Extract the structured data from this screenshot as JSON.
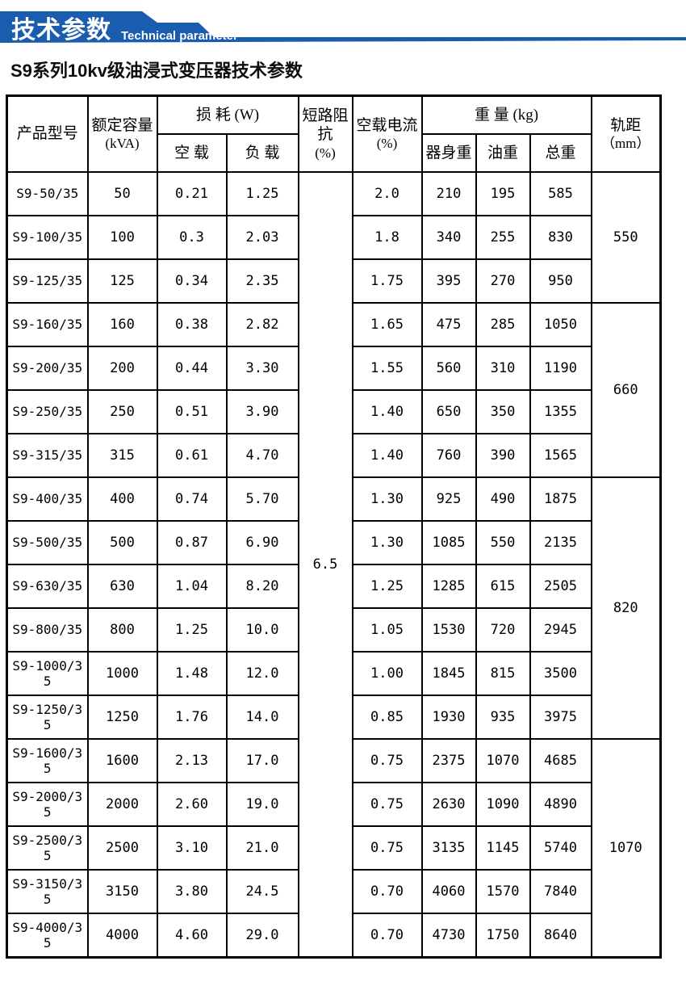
{
  "banner": {
    "title_zh": "技术参数",
    "title_en": "Technical parameter",
    "color": "#1a5cae"
  },
  "page_title": "S9系列10kv级油浸式变压器技术参数",
  "table": {
    "headers": {
      "product_model": "产品型号",
      "rated_capacity": "额定容量",
      "rated_capacity_unit": "(kVA)",
      "loss": "损 耗 (W)",
      "no_load": "空 载",
      "on_load": "负 载",
      "impedance": "短路阻抗",
      "impedance_unit": "(%)",
      "no_load_current": "空载电流",
      "no_load_current_unit": "(%)",
      "weight": "重 量 (kg)",
      "body_weight": "器身重",
      "oil_weight": "油重",
      "total_weight": "总重",
      "gauge": "轨距",
      "gauge_unit": "（mm）"
    },
    "impedance_value": "6.5",
    "gauge_groups": [
      {
        "value": "550",
        "rows": 3
      },
      {
        "value": "660",
        "rows": 4
      },
      {
        "value": "820",
        "rows": 6
      },
      {
        "value": "1070",
        "rows": 5
      }
    ],
    "rows": [
      [
        "S9-50/35",
        "50",
        "0.21",
        "1.25",
        "2.0",
        "210",
        "195",
        "585"
      ],
      [
        "S9-100/35",
        "100",
        "0.3",
        "2.03",
        "1.8",
        "340",
        "255",
        "830"
      ],
      [
        "S9-125/35",
        "125",
        "0.34",
        "2.35",
        "1.75",
        "395",
        "270",
        "950"
      ],
      [
        "S9-160/35",
        "160",
        "0.38",
        "2.82",
        "1.65",
        "475",
        "285",
        "1050"
      ],
      [
        "S9-200/35",
        "200",
        "0.44",
        "3.30",
        "1.55",
        "560",
        "310",
        "1190"
      ],
      [
        "S9-250/35",
        "250",
        "0.51",
        "3.90",
        "1.40",
        "650",
        "350",
        "1355"
      ],
      [
        "S9-315/35",
        "315",
        "0.61",
        "4.70",
        "1.40",
        "760",
        "390",
        "1565"
      ],
      [
        "S9-400/35",
        "400",
        "0.74",
        "5.70",
        "1.30",
        "925",
        "490",
        "1875"
      ],
      [
        "S9-500/35",
        "500",
        "0.87",
        "6.90",
        "1.30",
        "1085",
        "550",
        "2135"
      ],
      [
        "S9-630/35",
        "630",
        "1.04",
        "8.20",
        "1.25",
        "1285",
        "615",
        "2505"
      ],
      [
        "S9-800/35",
        "800",
        "1.25",
        "10.0",
        "1.05",
        "1530",
        "720",
        "2945"
      ],
      [
        "S9-1000/35",
        "1000",
        "1.48",
        "12.0",
        "1.00",
        "1845",
        "815",
        "3500"
      ],
      [
        "S9-1250/35",
        "1250",
        "1.76",
        "14.0",
        "0.85",
        "1930",
        "935",
        "3975"
      ],
      [
        "S9-1600/35",
        "1600",
        "2.13",
        "17.0",
        "0.75",
        "2375",
        "1070",
        "4685"
      ],
      [
        "S9-2000/35",
        "2000",
        "2.60",
        "19.0",
        "0.75",
        "2630",
        "1090",
        "4890"
      ],
      [
        "S9-2500/35",
        "2500",
        "3.10",
        "21.0",
        "0.75",
        "3135",
        "1145",
        "5740"
      ],
      [
        "S9-3150/35",
        "3150",
        "3.80",
        "24.5",
        "0.70",
        "4060",
        "1570",
        "7840"
      ],
      [
        "S9-4000/35",
        "4000",
        "4.60",
        "29.0",
        "0.70",
        "4730",
        "1750",
        "8640"
      ]
    ]
  }
}
